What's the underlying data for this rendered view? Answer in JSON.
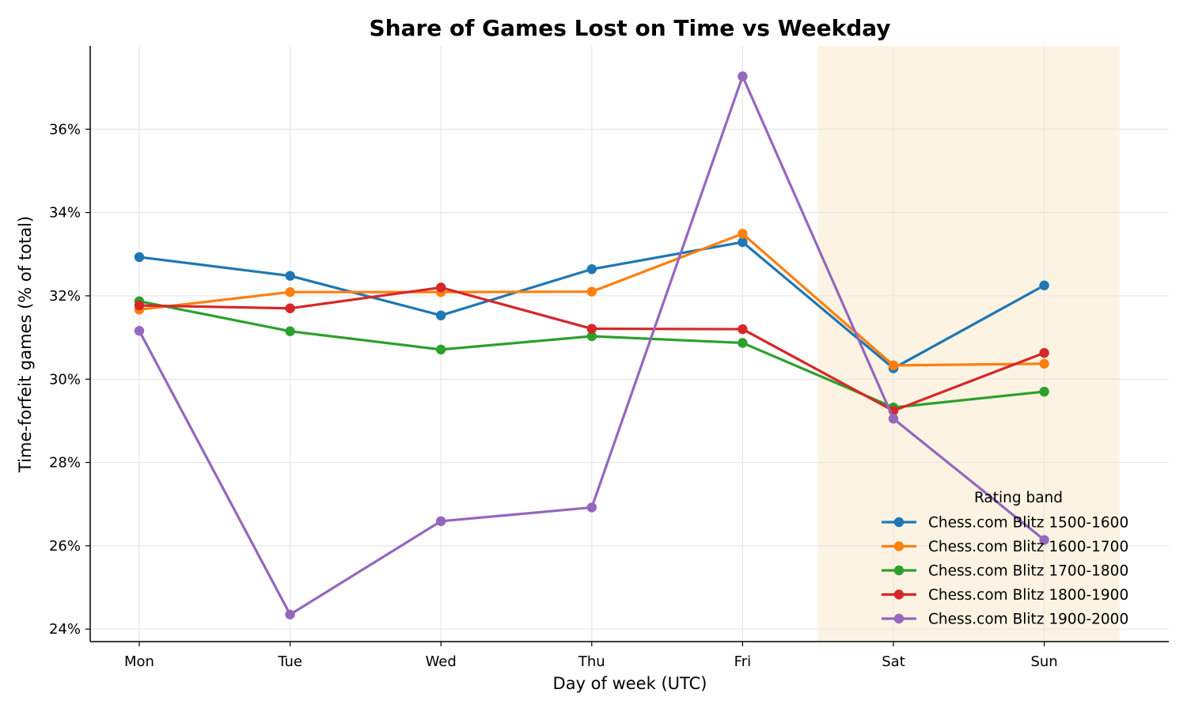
{
  "chart_data": {
    "type": "line",
    "title": "Share of Games Lost on Time vs Weekday",
    "xlabel": "Day of week (UTC)",
    "ylabel": "Time-forfeit games (% of total)",
    "categories": [
      "Mon",
      "Tue",
      "Wed",
      "Thu",
      "Fri",
      "Sat",
      "Sun"
    ],
    "ylim": [
      23.7,
      38.0
    ],
    "yticks": [
      24,
      26,
      28,
      30,
      32,
      34,
      36
    ],
    "ytick_suffix": "%",
    "grid": true,
    "shaded_region": {
      "from": "Sat",
      "to": "Sun",
      "color": "#fdf3e3"
    },
    "legend": {
      "title": "Rating band",
      "placement": "lower-right"
    },
    "series": [
      {
        "name": "Chess.com Blitz 1500-1600",
        "color": "#1f77b4",
        "values": [
          32.93,
          32.48,
          31.53,
          32.64,
          33.29,
          30.26,
          32.25
        ]
      },
      {
        "name": "Chess.com Blitz 1600-1700",
        "color": "#ff7f0e",
        "values": [
          31.67,
          32.09,
          32.09,
          32.1,
          33.49,
          30.33,
          30.37
        ]
      },
      {
        "name": "Chess.com Blitz 1700-1800",
        "color": "#2ca02c",
        "values": [
          31.87,
          31.15,
          30.71,
          31.03,
          30.87,
          29.32,
          29.7
        ]
      },
      {
        "name": "Chess.com Blitz 1800-1900",
        "color": "#d62728",
        "values": [
          31.77,
          31.7,
          32.2,
          31.21,
          31.2,
          29.24,
          30.63
        ]
      },
      {
        "name": "Chess.com Blitz 1900-2000",
        "color": "#9467bd",
        "values": [
          31.16,
          24.35,
          26.59,
          26.92,
          37.27,
          29.05,
          26.14
        ]
      }
    ]
  }
}
